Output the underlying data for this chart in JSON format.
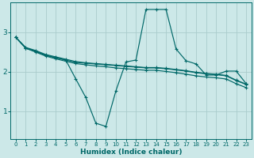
{
  "xlabel": "Humidex (Indice chaleur)",
  "xlim": [
    -0.5,
    23.5
  ],
  "ylim": [
    0.3,
    3.75
  ],
  "yticks": [
    1,
    2,
    3
  ],
  "xticks": [
    0,
    1,
    2,
    3,
    4,
    5,
    6,
    7,
    8,
    9,
    10,
    11,
    12,
    13,
    14,
    15,
    16,
    17,
    18,
    19,
    20,
    21,
    22,
    23
  ],
  "bg_color": "#cce8e8",
  "grid_color": "#aacccc",
  "line_color": "#006868",
  "lines": [
    {
      "x": [
        0,
        1,
        2,
        3,
        4,
        5,
        6,
        7,
        8,
        9,
        10,
        11,
        12,
        13,
        14,
        15,
        16,
        17,
        18,
        19,
        20,
        21,
        22,
        23
      ],
      "y": [
        2.88,
        2.6,
        2.52,
        2.42,
        2.36,
        2.3,
        1.82,
        1.35,
        0.7,
        0.62,
        1.52,
        2.25,
        2.3,
        3.58,
        3.58,
        3.58,
        2.58,
        2.28,
        2.2,
        1.92,
        1.92,
        2.02,
        2.02,
        1.7
      ]
    },
    {
      "x": [
        0,
        1,
        2,
        3,
        4,
        5,
        6,
        7,
        8,
        9,
        10,
        11,
        12,
        13,
        14,
        15,
        16,
        17,
        18,
        19,
        20,
        21,
        22,
        23
      ],
      "y": [
        2.88,
        2.6,
        2.52,
        2.42,
        2.36,
        2.3,
        2.24,
        2.22,
        2.2,
        2.18,
        2.16,
        2.14,
        2.12,
        2.1,
        2.1,
        2.08,
        2.05,
        2.02,
        1.98,
        1.95,
        1.93,
        1.9,
        1.78,
        1.68
      ]
    },
    {
      "x": [
        0,
        1,
        2,
        3,
        4,
        5,
        6,
        7,
        8,
        9,
        10,
        11,
        12,
        13,
        14,
        15,
        16,
        17,
        18,
        19,
        20,
        21,
        22,
        23
      ],
      "y": [
        2.88,
        2.62,
        2.54,
        2.44,
        2.38,
        2.32,
        2.26,
        2.23,
        2.21,
        2.19,
        2.17,
        2.15,
        2.13,
        2.11,
        2.11,
        2.09,
        2.06,
        2.03,
        1.99,
        1.96,
        1.94,
        1.91,
        1.79,
        1.69
      ]
    },
    {
      "x": [
        0,
        1,
        2,
        3,
        4,
        5,
        6,
        7,
        8,
        9,
        10,
        11,
        12,
        13,
        14,
        15,
        16,
        17,
        18,
        19,
        20,
        21,
        22,
        23
      ],
      "y": [
        2.88,
        2.6,
        2.5,
        2.4,
        2.33,
        2.27,
        2.21,
        2.18,
        2.15,
        2.13,
        2.1,
        2.08,
        2.06,
        2.04,
        2.04,
        2.01,
        1.98,
        1.94,
        1.9,
        1.87,
        1.85,
        1.82,
        1.7,
        1.6
      ]
    }
  ]
}
